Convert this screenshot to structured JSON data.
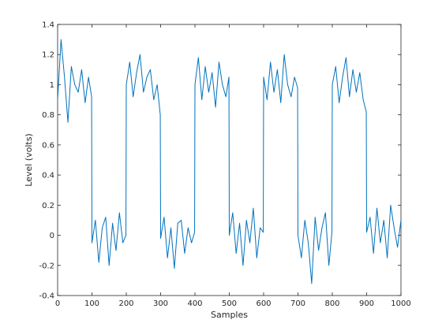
{
  "chart_data": {
    "type": "line",
    "title": "",
    "xlabel": "Samples",
    "ylabel": "Level (volts)",
    "xlim": [
      0,
      1000
    ],
    "ylim": [
      -0.4,
      1.4
    ],
    "xticks": [
      0,
      100,
      200,
      300,
      400,
      500,
      600,
      700,
      800,
      900,
      1000
    ],
    "yticks": [
      -0.4,
      -0.2,
      0,
      0.2,
      0.4,
      0.6,
      0.8,
      1,
      1.2,
      1.4
    ],
    "xtick_labels": [
      "0",
      "100",
      "200",
      "300",
      "400",
      "500",
      "600",
      "700",
      "800",
      "900",
      "1000"
    ],
    "ytick_labels": [
      "-0.4",
      "-0.2",
      "0",
      "0.2",
      "0.4",
      "0.6",
      "0.8",
      "1",
      "1.2",
      "1.4"
    ],
    "grid": false,
    "line_color": "#0072BD",
    "series": [
      {
        "x": [
          0,
          10,
          20,
          30,
          40,
          50,
          60,
          70,
          80,
          90,
          99,
          100,
          110,
          120,
          130,
          140,
          150,
          160,
          170,
          180,
          190,
          199,
          200,
          210,
          220,
          230,
          240,
          250,
          260,
          270,
          280,
          290,
          299,
          300,
          310,
          320,
          330,
          340,
          350,
          360,
          370,
          380,
          390,
          399,
          400,
          410,
          420,
          430,
          440,
          450,
          460,
          470,
          480,
          490,
          499,
          500,
          510,
          520,
          530,
          540,
          550,
          560,
          570,
          580,
          590,
          599,
          600,
          610,
          620,
          630,
          640,
          650,
          660,
          670,
          680,
          690,
          699,
          700,
          710,
          720,
          730,
          740,
          750,
          760,
          770,
          780,
          790,
          799,
          800,
          810,
          820,
          830,
          840,
          850,
          860,
          870,
          880,
          890,
          899,
          900,
          910,
          920,
          930,
          940,
          950,
          960,
          970,
          980,
          990,
          1000
        ],
        "y": [
          0.9,
          1.3,
          1.05,
          0.75,
          1.12,
          1.0,
          0.95,
          1.1,
          0.88,
          1.05,
          0.92,
          -0.05,
          0.1,
          -0.18,
          0.05,
          0.12,
          -0.2,
          0.08,
          -0.1,
          0.15,
          -0.05,
          0.0,
          1.0,
          1.15,
          0.92,
          1.08,
          1.2,
          0.95,
          1.05,
          1.1,
          0.9,
          1.0,
          0.8,
          -0.02,
          0.12,
          -0.15,
          0.05,
          -0.22,
          0.08,
          0.1,
          -0.12,
          0.05,
          -0.05,
          0.02,
          1.0,
          1.18,
          0.9,
          1.12,
          0.95,
          1.08,
          0.85,
          1.15,
          1.0,
          0.92,
          1.05,
          0.0,
          0.15,
          -0.12,
          0.08,
          -0.2,
          0.1,
          -0.05,
          0.18,
          -0.15,
          0.05,
          0.02,
          1.05,
          0.9,
          1.15,
          0.95,
          1.1,
          0.88,
          1.2,
          1.0,
          0.92,
          1.05,
          0.98,
          0.0,
          -0.15,
          0.1,
          -0.05,
          -0.32,
          0.12,
          -0.1,
          0.05,
          0.15,
          -0.2,
          0.02,
          1.0,
          1.12,
          0.88,
          1.05,
          1.18,
          0.92,
          1.1,
          0.95,
          1.08,
          0.9,
          0.82,
          0.02,
          0.12,
          -0.12,
          0.18,
          -0.05,
          0.1,
          -0.15,
          0.2,
          0.05,
          -0.08,
          0.1
        ]
      }
    ]
  }
}
